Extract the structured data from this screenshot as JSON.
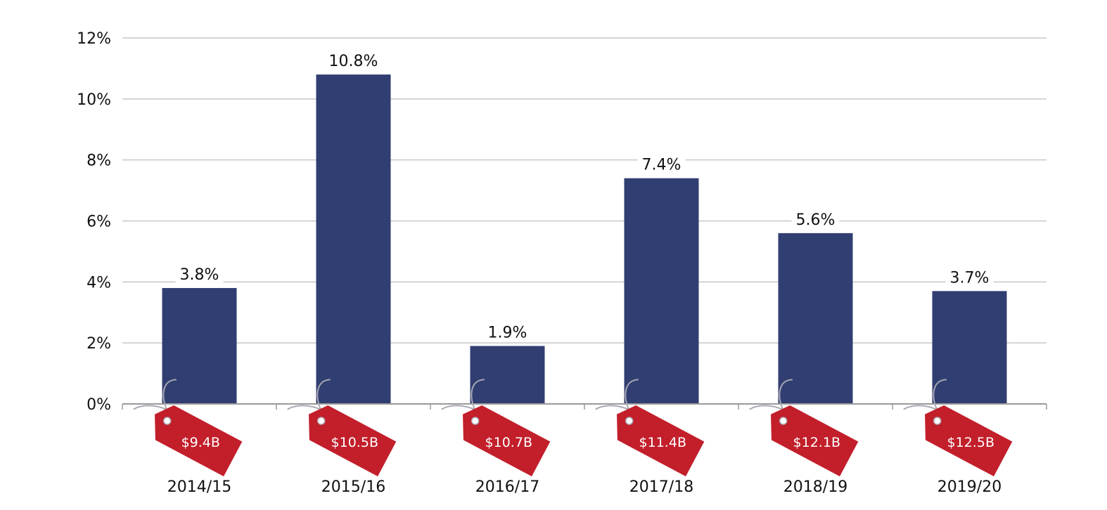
{
  "chart_data": {
    "type": "bar",
    "categories": [
      "2014/15",
      "2015/16",
      "2016/17",
      "2017/18",
      "2018/19",
      "2019/20"
    ],
    "values": [
      3.8,
      10.8,
      1.9,
      7.4,
      5.6,
      3.7
    ],
    "value_labels": [
      "3.8%",
      "10.8%",
      "1.9%",
      "7.4%",
      "5.6%",
      "3.7%"
    ],
    "price_tags": [
      "$9.4B",
      "$10.5B",
      "$10.7B",
      "$11.4B",
      "$12.1B",
      "$12.5B"
    ],
    "yticks": [
      0,
      2,
      4,
      6,
      8,
      10,
      12
    ],
    "ytick_labels": [
      "0%",
      "2%",
      "4%",
      "6%",
      "8%",
      "10%",
      "12%"
    ],
    "ylim": [
      0,
      12
    ],
    "grid": true,
    "legend": "none",
    "title": "",
    "xlabel": "",
    "ylabel": ""
  },
  "colors": {
    "bar": "#313e72",
    "tag": "#c21f2b",
    "grid": "#c8c8c8",
    "axis": "#9a9a9a",
    "string": "#a9a9b3"
  },
  "icons": {
    "tag": "price-tag-icon"
  }
}
